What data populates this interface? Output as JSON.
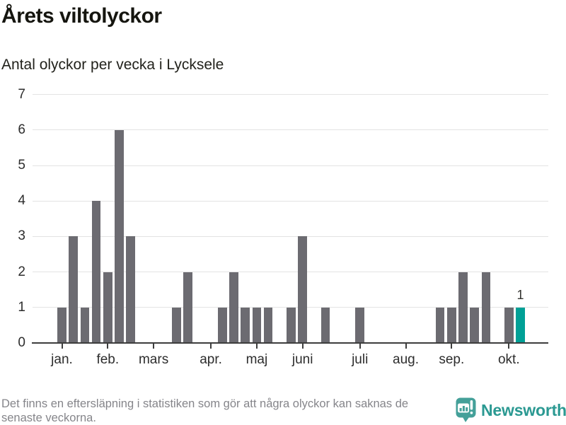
{
  "header": {
    "title": "Årets viltolyckor",
    "subtitle": "Antal olyckor per vecka i Lycksele"
  },
  "chart_data": {
    "type": "bar",
    "title": "Årets viltolyckor",
    "subtitle": "Antal olyckor per vecka i Lycksele",
    "xlabel": "",
    "ylabel": "",
    "x_unit": "vecka (week of year, jan.–okt.)",
    "x": [
      1,
      2,
      3,
      4,
      5,
      6,
      7,
      8,
      9,
      10,
      11,
      12,
      13,
      14,
      15,
      16,
      17,
      18,
      19,
      20,
      21,
      22,
      23,
      24,
      25,
      26,
      27,
      28,
      29,
      30,
      31,
      32,
      33,
      34,
      35,
      36,
      37,
      38,
      39,
      40,
      41
    ],
    "values": [
      1,
      3,
      1,
      4,
      2,
      6,
      3,
      0,
      0,
      0,
      1,
      2,
      0,
      0,
      1,
      2,
      1,
      1,
      1,
      0,
      1,
      3,
      0,
      1,
      0,
      0,
      1,
      0,
      0,
      0,
      0,
      0,
      0,
      1,
      1,
      2,
      1,
      2,
      0,
      1,
      1
    ],
    "month_ticks": [
      {
        "label": "jan.",
        "week": 1
      },
      {
        "label": "feb.",
        "week": 5
      },
      {
        "label": "mars",
        "week": 9
      },
      {
        "label": "apr.",
        "week": 14
      },
      {
        "label": "maj",
        "week": 18
      },
      {
        "label": "juni",
        "week": 22
      },
      {
        "label": "juli",
        "week": 27
      },
      {
        "label": "aug.",
        "week": 31
      },
      {
        "label": "sep.",
        "week": 35
      },
      {
        "label": "okt.",
        "week": 40
      }
    ],
    "yticks": [
      0,
      1,
      2,
      3,
      4,
      5,
      6,
      7
    ],
    "ylim": [
      0,
      7
    ],
    "grid": true,
    "legend": "none",
    "bar_color": "#6c6b71",
    "highlight_color": "#00a096",
    "highlighted_bar_index": 40,
    "value_label": {
      "text": "1",
      "bar_index": 40
    }
  },
  "footer": {
    "note": "Det finns en eftersläpning i statistiken som gör att några olyckor kan saknas de senaste veckorna.",
    "logo_text": "Newsworthy"
  },
  "colors": {
    "accent": "#00a096",
    "bar": "#6c6b71",
    "logo": "#44a099",
    "grid": "#e3e3e3",
    "axis": "#3d3d3d",
    "muted_text": "#85858a"
  }
}
